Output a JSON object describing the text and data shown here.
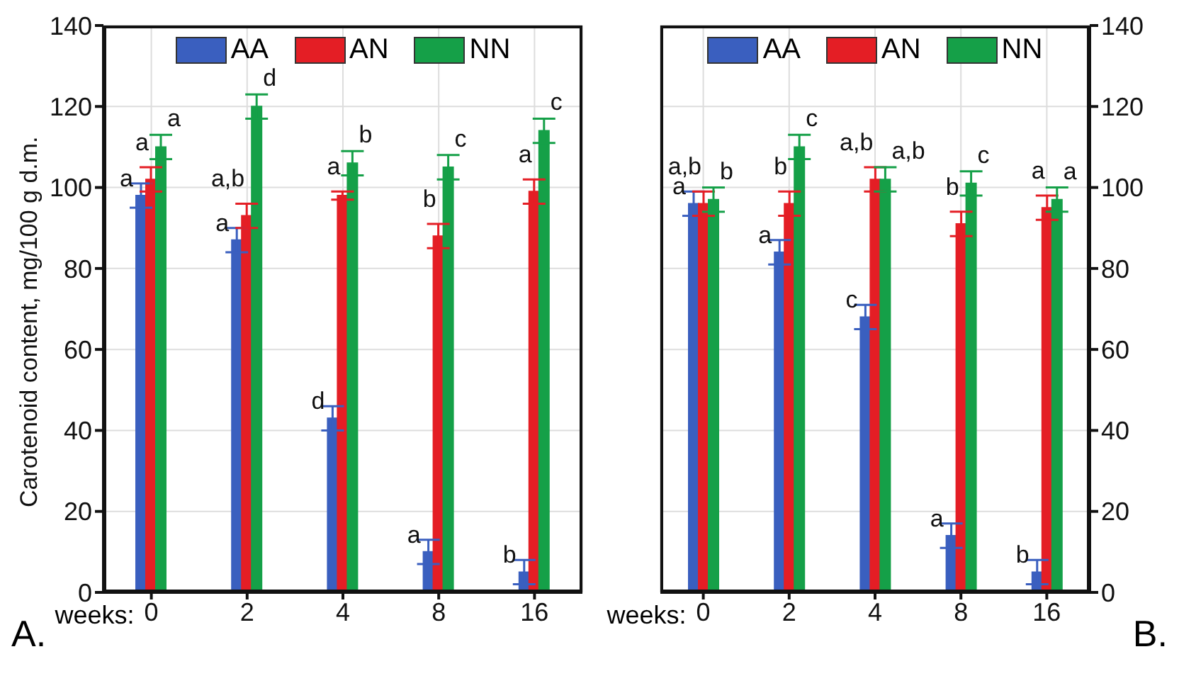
{
  "chart_data": [
    {
      "type": "bar",
      "xlabel": "weeks:",
      "ylabel": "Carotenoid content, mg/100 g d.m.",
      "categories": [
        "0",
        "2",
        "4",
        "8",
        "16"
      ],
      "series": [
        {
          "name": "AA",
          "color": "#3a5fbf",
          "values": [
            98,
            87,
            43,
            10,
            5
          ],
          "errors": [
            3,
            3,
            3,
            3,
            3
          ]
        },
        {
          "name": "AN",
          "color": "#e41e25",
          "values": [
            102,
            93,
            98,
            88,
            99
          ],
          "errors": [
            3,
            3,
            1,
            3,
            3
          ]
        },
        {
          "name": "NN",
          "color": "#15a048",
          "values": [
            110,
            120,
            106,
            105,
            114
          ],
          "errors": [
            3,
            3,
            3,
            3,
            3
          ]
        }
      ],
      "ylim": [
        0,
        140
      ],
      "yticks": [
        0,
        20,
        40,
        60,
        80,
        100,
        120,
        140
      ],
      "grid": true,
      "legend": "top",
      "annotations": [
        {
          "text": "a",
          "x": "0",
          "y": 101
        },
        {
          "text": "a",
          "x": "2",
          "y": 90
        },
        {
          "text": "d",
          "x": "4",
          "y": 46
        },
        {
          "text": "a",
          "x": "8",
          "y": 13
        },
        {
          "text": "b",
          "x": "16",
          "y": 8
        },
        {
          "text": "a",
          "x": "0",
          "y": 105
        },
        {
          "text": "a,b",
          "x": "2",
          "y": 96
        },
        {
          "text": "a",
          "x": "4",
          "y": 99
        },
        {
          "text": "b",
          "x": "8",
          "y": 91
        },
        {
          "text": "a",
          "x": "16",
          "y": 102
        },
        {
          "text": "a",
          "x": "0",
          "y": 113
        },
        {
          "text": "d",
          "x": "2",
          "y": 123
        },
        {
          "text": "b",
          "x": "4",
          "y": 109
        },
        {
          "text": "c",
          "x": "8",
          "y": 108
        },
        {
          "text": "c",
          "x": "16",
          "y": 117
        },
        "A."
      ]
    },
    {
      "type": "bar",
      "xlabel": "weeks:",
      "categories": [
        "0",
        "2",
        "4",
        "8",
        "16"
      ],
      "series": [
        {
          "name": "AA",
          "color": "#3a5fbf",
          "values": [
            96,
            84,
            68,
            14,
            5
          ],
          "errors": [
            3,
            3,
            3,
            3,
            3
          ],
          "axis": "y2"
        },
        {
          "name": "AN",
          "color": "#e41e25",
          "values": [
            96,
            96,
            102,
            91,
            95
          ],
          "errors": [
            3,
            3,
            3,
            3,
            3
          ],
          "axis": "y2"
        },
        {
          "name": "NN",
          "color": "#15a048",
          "values": [
            97,
            110,
            102,
            101,
            97
          ],
          "errors": [
            3,
            3,
            3,
            3,
            3
          ],
          "axis": "y2"
        }
      ],
      "y2lim": [
        0,
        140
      ],
      "y2ticks": [
        0,
        20,
        40,
        60,
        80,
        100,
        120,
        140
      ],
      "grid": true,
      "legend": "top",
      "annotations": [
        "a",
        "a",
        "c",
        "a",
        "b",
        "a,b",
        "b",
        "a,b",
        "b",
        "a",
        "b",
        "c",
        "a,b",
        "c",
        "a",
        "B."
      ]
    }
  ]
}
